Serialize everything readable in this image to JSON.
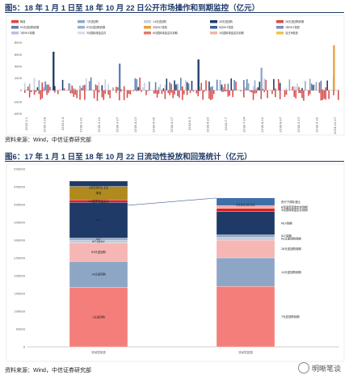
{
  "figure5": {
    "title": "图5：18 年 1 月 1 日至 18 年 10 月 22 日公开市场操作和到期监控（亿元）",
    "source": "资料来源：Wind，中信证券研究部"
  },
  "figure6": {
    "title": "图6：17 年 1 月 1 日至 18 年 10 月 22 日流动性投放和回笼统计（亿元）",
    "source": "资料来源：Wind，中信证券研究部"
  },
  "watermark": "明晰笔谈",
  "chart_data": [
    {
      "type": "bar",
      "title": "",
      "ylim": [
        -4000,
        8000
      ],
      "yticks": [
        -4000,
        -2000,
        0,
        2000,
        4000,
        6000,
        8000
      ],
      "legend": [
        {
          "name": "降准",
          "color": "#e8413c"
        },
        {
          "name": "7天逆回购",
          "color": "#8fa8c8"
        },
        {
          "name": "14天逆回购",
          "color": "#c9cfe0"
        },
        {
          "name": "28天逆回购",
          "color": "#1f3a66"
        },
        {
          "name": "28天逆回购到期",
          "color": "#d94b4b"
        },
        {
          "name": "63天逆回购到期",
          "color": "#5f7fb0"
        },
        {
          "name": "63天逆回购到期",
          "color": "#9db0cf"
        },
        {
          "name": "3月MLF投放",
          "color": "#e8a23c"
        },
        {
          "name": "6月MLF投放",
          "color": "#3d5f99"
        },
        {
          "name": "1年MLF投放",
          "color": "#7a8fb5"
        },
        {
          "name": "1年MLF到期",
          "color": "#b5c2da"
        },
        {
          "name": "3月国库现金定存",
          "color": "#d7dde9"
        },
        {
          "name": "6月国库现金定存到期",
          "color": "#e07a6f"
        },
        {
          "name": "3月国库现金定存到期",
          "color": "#f0b5ad"
        },
        {
          "name": "当日净投放",
          "color": "#f2c14e"
        }
      ],
      "x_labels": [
        "2018-1-1",
        "2018-1-18",
        "2018-2-4",
        "2018-2-21",
        "2018-3-10",
        "2018-3-27",
        "2018-4-13",
        "2018-4-30",
        "2018-5-17",
        "2018-6-3",
        "2018-6-20",
        "2018-7-7",
        "2018-7-24",
        "2018-8-10",
        "2018-8-27",
        "2018-9-13",
        "2018-9-30",
        "2018-10-17"
      ]
    },
    {
      "type": "bar",
      "title": "",
      "ylim": [
        0,
        500000
      ],
      "yticks": [
        0,
        50000,
        100000,
        150000,
        200000,
        250000,
        300000,
        350000,
        400000,
        450000,
        500000
      ],
      "categories": [
        "流动性投放",
        "流动性回笼"
      ],
      "totals": [
        "465959.16",
        "418438.61"
      ],
      "series": [
        {
          "bar": "流动性投放",
          "segments": [
            {
              "name": "7天逆回购",
              "value": 167000,
              "color": "#f47f7a"
            },
            {
              "name": "14天逆回购",
              "value": 73000,
              "color": "#8ea6c6"
            },
            {
              "name": "63天逆回购",
              "value": 52000,
              "color": "#f6b6b4"
            },
            {
              "name": "6个月MLF",
              "value": 8000,
              "color": "#c4cbd9"
            },
            {
              "name": "SLF",
              "value": 6000,
              "color": "#8ea6c6"
            },
            {
              "name": "MLF",
              "value": 100000,
              "color": "#1f3a66"
            },
            {
              "name": "3M国库现金定存",
              "value": 7000,
              "color": "#e01e1e"
            },
            {
              "name": "降准",
              "value": 38000,
              "color": "#b08a1e"
            },
            {
              "name": "",
              "value": 14959.16,
              "color": "#1f3a66"
            }
          ],
          "labels": [
            "7天逆回购",
            "14天逆回购",
            "63天逆回购",
            "6个月MLF",
            "SLF",
            "MLF",
            "3M国库现金定存",
            "降准"
          ]
        },
        {
          "bar": "流动性回笼",
          "segments": [
            {
              "name": "7天逆回购到期",
              "value": 170000,
              "color": "#f47f7a"
            },
            {
              "name": "14天逆回购到期",
              "value": 80000,
              "color": "#8ea6c6"
            },
            {
              "name": "28天逆回购到期",
              "value": 50000,
              "color": "#f6b6b4"
            },
            {
              "name": "63天逆回购到期",
              "value": 8000,
              "color": "#c4cbd9"
            },
            {
              "name": "SLF到期",
              "value": 7000,
              "color": "#8ea6c6"
            },
            {
              "name": "MLF到期",
              "value": 65000,
              "color": "#1f3a66"
            },
            {
              "name": "3月国库现金定存到期",
              "value": 9000,
              "color": "#e01e1e"
            },
            {
              "name": "6月国库现金定存到期",
              "value": 8000,
              "color": "#f0a8a8"
            },
            {
              "name": "央行下调存准比",
              "value": 21438.61,
              "color": "#3d6fa8"
            }
          ],
          "labels": [
            "7天逆回购到期",
            "14天逆回购到期",
            "28天逆回购到期",
            "63天逆回购到期",
            "SLF到期",
            "MLF到期",
            "3月国库现金定存到期",
            "6月国库现金定存到期",
            "央行下调存准比"
          ]
        }
      ]
    }
  ]
}
